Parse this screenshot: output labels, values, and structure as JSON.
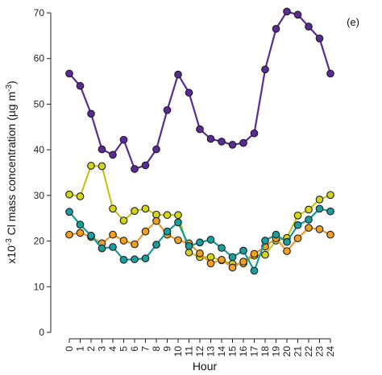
{
  "chart_data": {
    "type": "line",
    "panel_label": "(e)",
    "xlabel": "Hour",
    "ylabel_prefix": "x10",
    "ylabel_prefix_exp": "-3",
    "ylabel_main": " Cl mass concentration (µg m",
    "ylabel_unit_exp": "-3",
    "ylabel_suffix": ")",
    "x": [
      0,
      1,
      2,
      3,
      4,
      5,
      6,
      7,
      8,
      9,
      10,
      11,
      12,
      13,
      14,
      15,
      16,
      17,
      18,
      19,
      20,
      21,
      22,
      23,
      24
    ],
    "x_ticks": [
      0,
      1,
      2,
      3,
      4,
      5,
      6,
      7,
      8,
      9,
      10,
      11,
      12,
      13,
      14,
      15,
      16,
      17,
      18,
      19,
      20,
      21,
      22,
      23,
      24
    ],
    "ylim": [
      0,
      70
    ],
    "y_ticks": [
      0,
      10,
      20,
      30,
      40,
      50,
      60,
      70
    ],
    "grid": false,
    "legend": "none",
    "series": [
      {
        "line_color": "#5a2a96",
        "fill_color": "#5a2a96",
        "values": [
          56.7,
          54.0,
          47.9,
          40.1,
          38.9,
          42.2,
          35.8,
          36.6,
          40.1,
          48.7,
          56.5,
          52.5,
          44.5,
          42.4,
          41.8,
          41.1,
          41.5,
          43.6,
          57.6,
          66.5,
          70.3,
          69.6,
          67.0,
          64.4,
          56.7
        ]
      },
      {
        "line_color": "#c4c41c",
        "fill_color": "#d4d41c",
        "values": [
          30.2,
          29.8,
          36.5,
          36.4,
          27.1,
          24.5,
          26.6,
          27.1,
          25.8,
          25.7,
          25.7,
          17.5,
          16.5,
          16.5,
          15.8,
          15.0,
          15.1,
          16.8,
          17.0,
          20.1,
          20.7,
          25.6,
          26.9,
          29.1,
          30.1
        ]
      },
      {
        "line_color": "#e8982a",
        "fill_color": "#f0a020",
        "values": [
          21.4,
          21.8,
          20.9,
          19.5,
          21.4,
          20.1,
          19.3,
          22.1,
          24.4,
          21.4,
          20.2,
          19.5,
          17.3,
          15.1,
          15.9,
          14.2,
          15.5,
          17.2,
          18.8,
          20.6,
          17.8,
          20.6,
          22.9,
          22.6,
          21.4
        ]
      },
      {
        "line_color": "#159a9a",
        "fill_color": "#1a9e9e",
        "values": [
          26.4,
          23.6,
          21.2,
          18.4,
          18.7,
          15.9,
          16.0,
          16.2,
          19.2,
          22.1,
          24.1,
          18.9,
          19.7,
          20.3,
          18.5,
          16.5,
          17.9,
          13.5,
          20.1,
          21.4,
          19.8,
          23.5,
          24.7,
          27.1,
          26.5
        ]
      }
    ]
  }
}
